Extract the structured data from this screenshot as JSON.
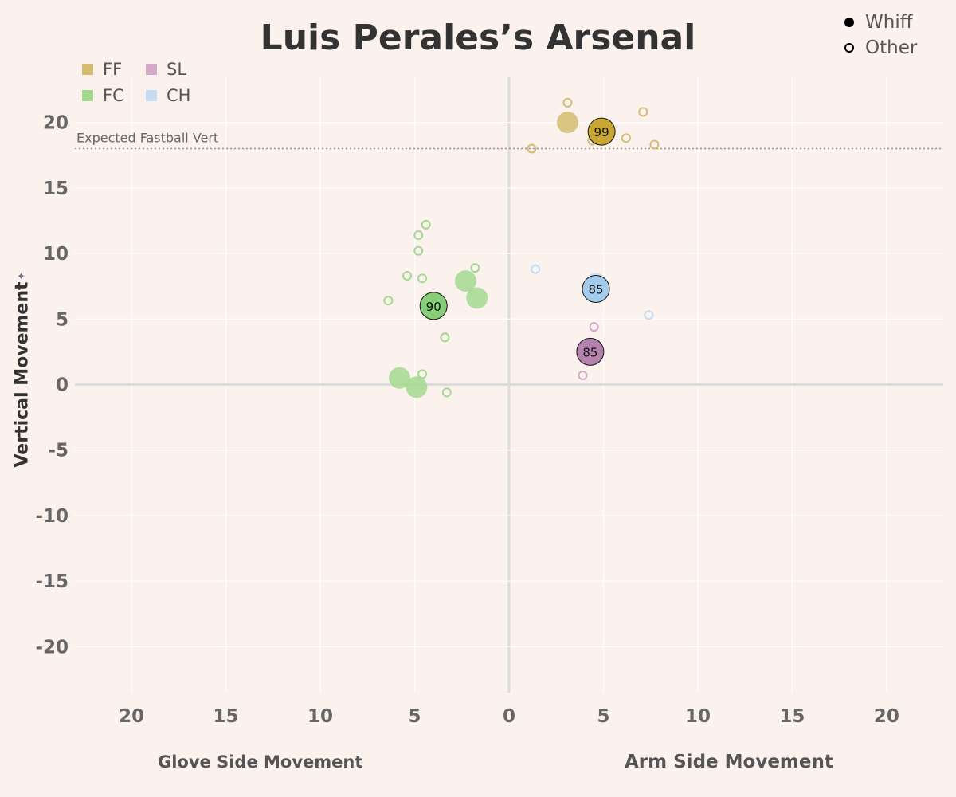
{
  "chart_data": {
    "type": "scatter",
    "title": "Luis Perales’s Arsenal",
    "ylabel": "Vertical Movement",
    "xlabel_left": "Glove Side Movement",
    "xlabel_right": "Arm Side Movement",
    "xlim": [
      -23,
      23
    ],
    "ylim": [
      -23.5,
      23.5
    ],
    "x_ticks": [
      -20,
      -15,
      -10,
      -5,
      0,
      5,
      10,
      15,
      20
    ],
    "x_tick_labels": [
      "20",
      "15",
      "10",
      "5",
      "0",
      "5",
      "10",
      "15",
      "20"
    ],
    "y_ticks": [
      -20,
      -15,
      -10,
      -5,
      0,
      5,
      10,
      15,
      20
    ],
    "y_tick_labels": [
      "-20",
      "-15",
      "-10",
      "-5",
      "0",
      "5",
      "10",
      "15",
      "20"
    ],
    "grid": true,
    "reference_line": {
      "y": 18,
      "label": "Expected Fastball Vert"
    },
    "legend_pitch_types": [
      {
        "code": "FF",
        "color": "#d4bd72"
      },
      {
        "code": "SL",
        "color": "#d4a8c8"
      },
      {
        "code": "FC",
        "color": "#a3d98f"
      },
      {
        "code": "CH",
        "color": "#c5dcf0"
      }
    ],
    "legend_outcome": [
      {
        "label": "Whiff",
        "style": "filled"
      },
      {
        "label": "Other",
        "style": "hollow"
      }
    ],
    "colors": {
      "FF": "#d4bd72",
      "FF_avg": "#c9a634",
      "FC": "#a3d98f",
      "FC_avg": "#86cf78",
      "SL": "#d4a8c8",
      "SL_avg": "#b382ad",
      "CH": "#c5dcf0",
      "CH_avg": "#a3cbeb"
    },
    "series": [
      {
        "name": "FF",
        "whiff": [
          [
            3.1,
            20.0
          ]
        ],
        "other": [
          [
            3.1,
            21.5
          ],
          [
            1.2,
            18.0
          ],
          [
            4.4,
            18.6
          ],
          [
            6.2,
            18.8
          ],
          [
            7.1,
            20.8
          ],
          [
            7.7,
            18.3
          ]
        ],
        "average": {
          "x": 4.9,
          "y": 19.3,
          "velo": "99"
        }
      },
      {
        "name": "FC",
        "whiff": [
          [
            -2.3,
            7.9
          ],
          [
            -1.7,
            6.6
          ],
          [
            -5.8,
            0.5
          ],
          [
            -4.9,
            -0.2
          ]
        ],
        "other": [
          [
            -4.4,
            12.2
          ],
          [
            -4.8,
            11.4
          ],
          [
            -4.8,
            10.2
          ],
          [
            -5.4,
            8.3
          ],
          [
            -4.6,
            8.1
          ],
          [
            -1.8,
            8.9
          ],
          [
            -6.4,
            6.4
          ],
          [
            -3.4,
            3.6
          ],
          [
            -4.6,
            0.8
          ],
          [
            -3.3,
            -0.6
          ]
        ],
        "average": {
          "x": -4.0,
          "y": 6.0,
          "velo": "90"
        }
      },
      {
        "name": "SL",
        "whiff": [],
        "other": [
          [
            4.5,
            4.4
          ],
          [
            3.9,
            0.7
          ]
        ],
        "average": {
          "x": 4.3,
          "y": 2.5,
          "velo": "85"
        }
      },
      {
        "name": "CH",
        "whiff": [
          [
            4.6,
            7.7
          ]
        ],
        "other": [
          [
            1.4,
            8.8
          ],
          [
            7.4,
            5.3
          ]
        ],
        "average": {
          "x": 4.6,
          "y": 7.3,
          "velo": "85"
        }
      }
    ]
  }
}
